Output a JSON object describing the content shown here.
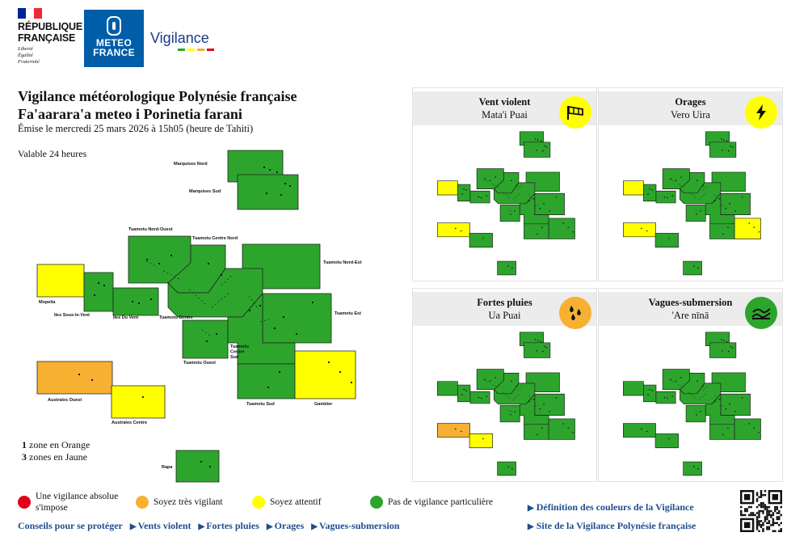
{
  "header": {
    "rf": {
      "lines": [
        "RÉPUBLIQUE",
        "FRANÇAISE"
      ],
      "motto": [
        "Liberté",
        "Égalité",
        "Fraternité"
      ]
    },
    "mf": {
      "lines": [
        "METEO",
        "FRANCE"
      ]
    },
    "vigilance_logo": "Vigilance"
  },
  "bulletin": {
    "title_fr": "Vigilance météorologique Polynésie française",
    "title_tah": "Fa'aarara'a meteo i Porinetia farani",
    "issued": "Émise le mercredi 25 mars 2026 à 15h05 (heure de Tahiti)",
    "validity": "Valable 24 heures"
  },
  "colors": {
    "green": "#2da52d",
    "yellow": "#ffff00",
    "orange": "#f7b032",
    "red": "#e3001b",
    "border": "#222222"
  },
  "zones": [
    {
      "id": "marquises-nord",
      "name": "Marquises Nord",
      "level": "green"
    },
    {
      "id": "marquises-sud",
      "name": "Marquises Sud",
      "level": "green"
    },
    {
      "id": "tuamotu-nord-ouest",
      "name": "Tuamotu Nord-Ouest",
      "level": "green"
    },
    {
      "id": "tuamotu-centre-nord",
      "name": "Tuamotu Centre Nord",
      "level": "green"
    },
    {
      "id": "tuamotu-nord-est",
      "name": "Tuamotu Nord-Est",
      "level": "green"
    },
    {
      "id": "mopelia",
      "name": "Mopelia",
      "level": "yellow"
    },
    {
      "id": "iles-sous-le-vent",
      "name": "Iles Sous-le-Vent",
      "level": "green"
    },
    {
      "id": "iles-du-vent",
      "name": "Iles Du Vent",
      "level": "green"
    },
    {
      "id": "tuamotu-centre",
      "name": "Tuamotu Centre",
      "level": "green"
    },
    {
      "id": "tuamotu-est",
      "name": "Tuamotu Est",
      "level": "green"
    },
    {
      "id": "tuamotu-ouest",
      "name": "Tuamotu Ouest",
      "level": "green"
    },
    {
      "id": "tuamotu-centre-sud",
      "name": "Tuamotu Centre Sud",
      "level": "green"
    },
    {
      "id": "australes-ouest",
      "name": "Australes Ouest",
      "level": "orange"
    },
    {
      "id": "tuamotu-sud",
      "name": "Tuamotu Sud",
      "level": "green"
    },
    {
      "id": "gambier",
      "name": "Gambier",
      "level": "yellow"
    },
    {
      "id": "australes-centre",
      "name": "Australes Centre",
      "level": "yellow"
    },
    {
      "id": "rapa",
      "name": "Rapa",
      "level": "green"
    }
  ],
  "summary": {
    "orange_count": "1",
    "orange_text": "zone en Orange",
    "yellow_count": "3",
    "yellow_text": "zones en Jaune"
  },
  "panels": [
    {
      "id": "vent",
      "title": "Vent violent",
      "subtitle": "Mata'i Puai",
      "icon": "windsock-icon",
      "level": "yellow",
      "yellow": [
        "mopelia",
        "australes-ouest"
      ],
      "orange": []
    },
    {
      "id": "orages",
      "title": "Orages",
      "subtitle": "Vero Uira",
      "icon": "lightning-icon",
      "level": "yellow",
      "yellow": [
        "mopelia",
        "australes-ouest",
        "gambier"
      ],
      "orange": []
    },
    {
      "id": "pluies",
      "title": "Fortes pluies",
      "subtitle": "Ua Puai",
      "icon": "rain-drops-icon",
      "level": "orange",
      "yellow": [
        "australes-centre"
      ],
      "orange": [
        "australes-ouest"
      ]
    },
    {
      "id": "vagues",
      "title": "Vagues-submersion",
      "subtitle": "'Are nīnā",
      "icon": "waves-icon",
      "level": "green",
      "yellow": [],
      "orange": []
    }
  ],
  "legend": [
    {
      "color": "red",
      "text": "Une vigilance absolue s'impose"
    },
    {
      "color": "orange",
      "text": "Soyez très vigilant"
    },
    {
      "color": "yellow",
      "text": "Soyez attentif"
    },
    {
      "color": "green",
      "text": "Pas de vigilance particulière"
    }
  ],
  "footer_links": {
    "conseils": "Conseils pour se protéger",
    "items": [
      "Vents violent",
      "Fortes pluies",
      "Orages",
      "Vagues-submersion"
    ],
    "definition": "Définition des couleurs de la Vigilance",
    "site": "Site de la Vigilance Polynésie française"
  }
}
